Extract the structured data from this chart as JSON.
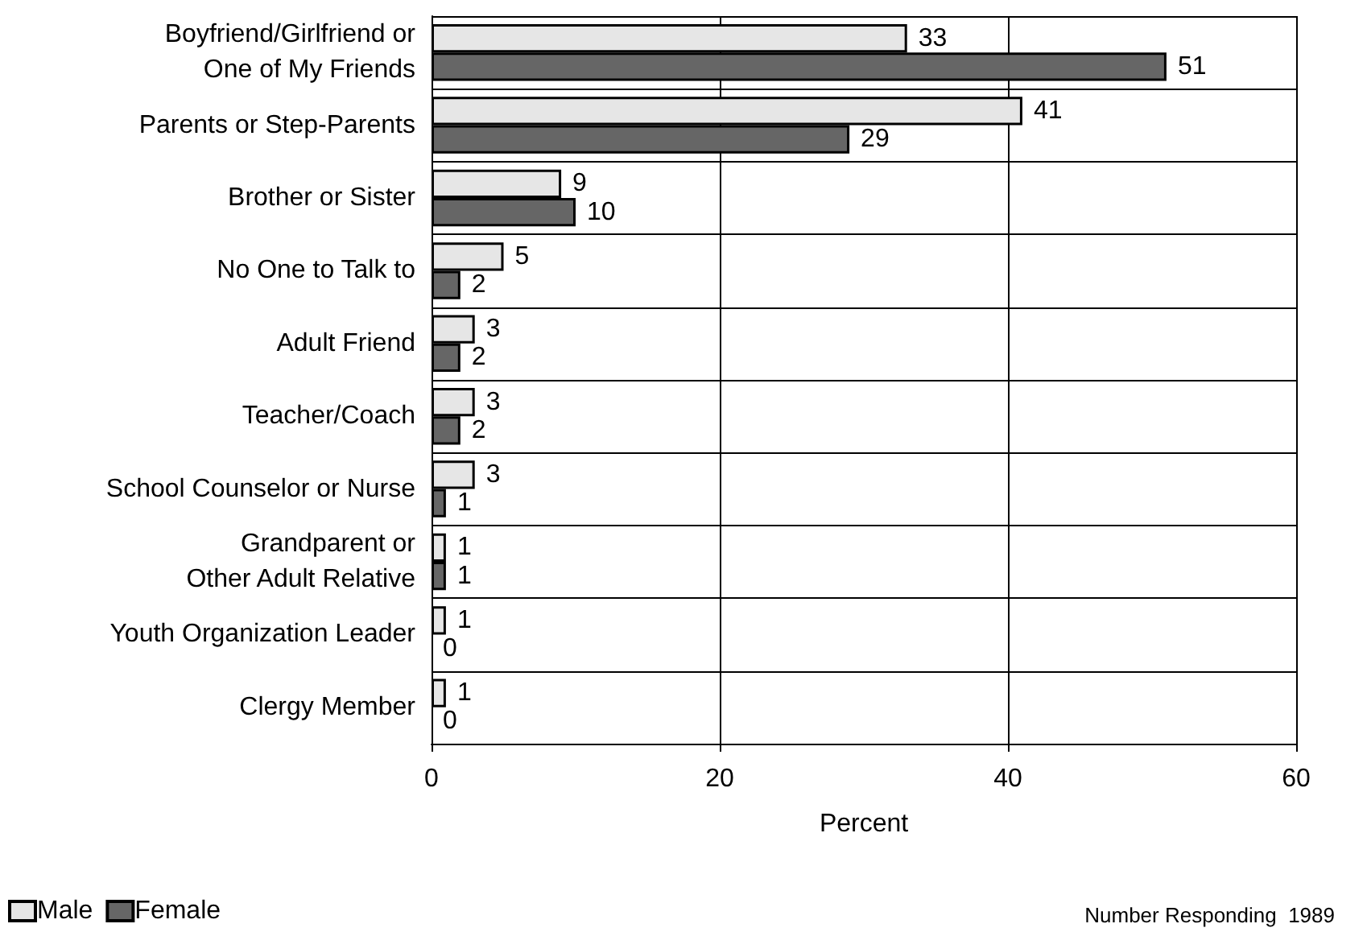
{
  "chart_data": {
    "type": "bar",
    "orientation": "horizontal",
    "categories": [
      "Boyfriend/Girlfriend or\nOne of My Friends",
      "Parents or Step-Parents",
      "Brother or Sister",
      "No One to Talk to",
      "Adult Friend",
      "Teacher/Coach",
      "School Counselor or Nurse",
      "Grandparent or\nOther Adult Relative",
      "Youth Organization Leader",
      "Clergy Member"
    ],
    "series": [
      {
        "name": "Male",
        "color": "#e6e6e6",
        "values": [
          33,
          41,
          9,
          5,
          3,
          3,
          3,
          1,
          1,
          1
        ]
      },
      {
        "name": "Female",
        "color": "#666666",
        "values": [
          51,
          29,
          10,
          2,
          2,
          2,
          1,
          1,
          0,
          0
        ]
      }
    ],
    "xlabel": "Percent",
    "xlim": [
      0,
      60
    ],
    "xticks": [
      0,
      20,
      40,
      60
    ],
    "grid": true,
    "legend": "bottom left",
    "data_labels": true,
    "annotations": [
      "Number Responding  1989"
    ]
  }
}
